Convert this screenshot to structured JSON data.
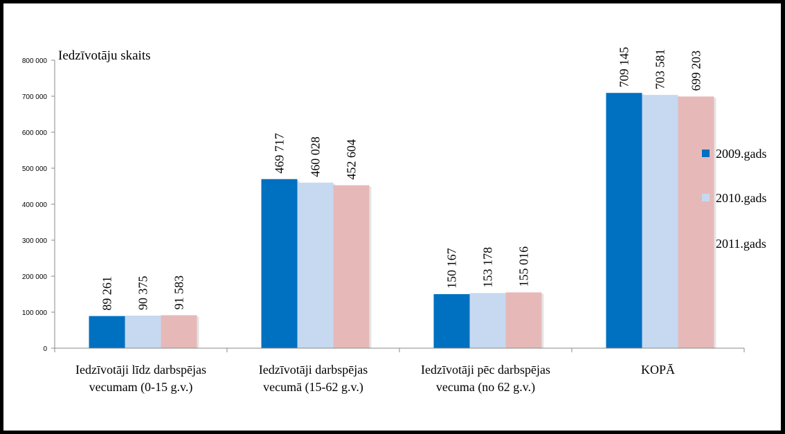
{
  "chart_data": {
    "type": "bar",
    "ylabel": "Iedzīvotāju skaits",
    "ylim": [
      0,
      800000
    ],
    "yticks": [
      0,
      100000,
      200000,
      300000,
      400000,
      500000,
      600000,
      700000,
      800000
    ],
    "ytick_labels": [
      "0",
      "100 000",
      "200 000",
      "300 000",
      "400 000",
      "500 000",
      "600 000",
      "700 000",
      "800 000"
    ],
    "categories": [
      [
        "Iedzīvotāji līdz darbspējas",
        "vecumam (0-15 g.v.)"
      ],
      [
        "Iedzīvotāji darbspējas",
        "vecumā (15-62 g.v.)"
      ],
      [
        "Iedzīvotāji pēc darbspējas",
        "vecuma (no 62 g.v.)"
      ],
      [
        "KOPĀ"
      ]
    ],
    "series": [
      {
        "name": "2009.gads",
        "color": "#0070C0",
        "values": [
          89261,
          469717,
          150167,
          709145
        ],
        "labels": [
          "89 261",
          "469 717",
          "150 167",
          "709 145"
        ]
      },
      {
        "name": "2010.gads",
        "color": "#C6D9F1",
        "values": [
          90375,
          460028,
          153178,
          703581
        ],
        "labels": [
          "90 375",
          "460 028",
          "153 178",
          "703 581"
        ]
      },
      {
        "name": "2011.gads",
        "color": "#E6B9B8",
        "values": [
          91583,
          452604,
          155016,
          699203
        ],
        "labels": [
          "91 583",
          "452 604",
          "155 016",
          "699 203"
        ]
      }
    ],
    "legend_position": "right",
    "grid": false
  }
}
